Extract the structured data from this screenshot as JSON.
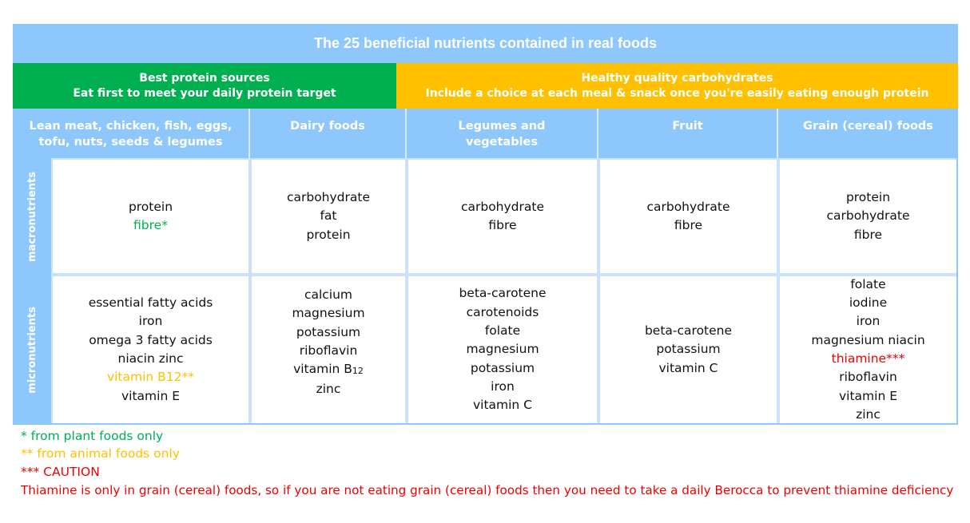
{
  "title": "The 25 beneficial nutrients contained in real foods",
  "groups": {
    "protein": {
      "line1": "Best protein sources",
      "line2": "Eat first to meet your daily protein target",
      "color": "#00b050"
    },
    "carbs": {
      "line1": "Healthy quality carbohydrates",
      "line2": "Include a choice at each meal & snack once you're easily eating enough protein",
      "color": "#ffc000"
    }
  },
  "columns": [
    {
      "line1": "Lean meat, chicken, fish, eggs,",
      "line2": "tofu, nuts, seeds & legumes"
    },
    {
      "line1": "Dairy foods",
      "line2": ""
    },
    {
      "line1": "Legumes and",
      "line2": "vegetables"
    },
    {
      "line1": "Fruit",
      "line2": ""
    },
    {
      "line1": "Grain (cereal) foods",
      "line2": ""
    }
  ],
  "rows": {
    "macro_label": "macronutrients",
    "micro_label": "micronutrients"
  },
  "macro": {
    "lean": [
      "protein",
      "fibre*"
    ],
    "dairy": [
      "carbohydrate",
      "fat",
      "protein"
    ],
    "legumes": [
      "carbohydrate",
      "fibre"
    ],
    "fruit": [
      "carbohydrate",
      "fibre"
    ],
    "grain": [
      "protein",
      "carbohydrate",
      "fibre"
    ]
  },
  "micro": {
    "lean": [
      "essential fatty acids",
      "iron",
      "omega 3 fatty acids",
      "niacin zinc",
      "vitamin B12**",
      "vitamin E"
    ],
    "dairy": [
      "calcium",
      "magnesium",
      "potassium",
      "riboflavin",
      "vitamin B",
      "zinc"
    ],
    "dairy_b12_subscript": "12",
    "legumes": [
      "beta-carotene",
      "carotenoids",
      "folate",
      "magnesium",
      "potassium",
      "iron",
      "vitamin C"
    ],
    "fruit": [
      "beta-carotene",
      "potassium",
      "vitamin C"
    ],
    "grain": [
      "folate",
      "iodine",
      "iron",
      "magnesium niacin",
      "thiamine***",
      "riboflavin",
      "vitamin E",
      "zinc"
    ]
  },
  "footnotes": {
    "plant": "* from plant foods only",
    "animal": "** from animal foods only",
    "caution": "*** CAUTION",
    "thiamine": "Thiamine is only in grain (cereal) foods, so if you are not eating grain (cereal) foods then you need to take a daily Berocca to prevent thiamine deficiency"
  },
  "colors": {
    "header_blue": "#8ec7fb",
    "green": "#00b050",
    "amber": "#ffc000",
    "red": "#ee0000"
  }
}
